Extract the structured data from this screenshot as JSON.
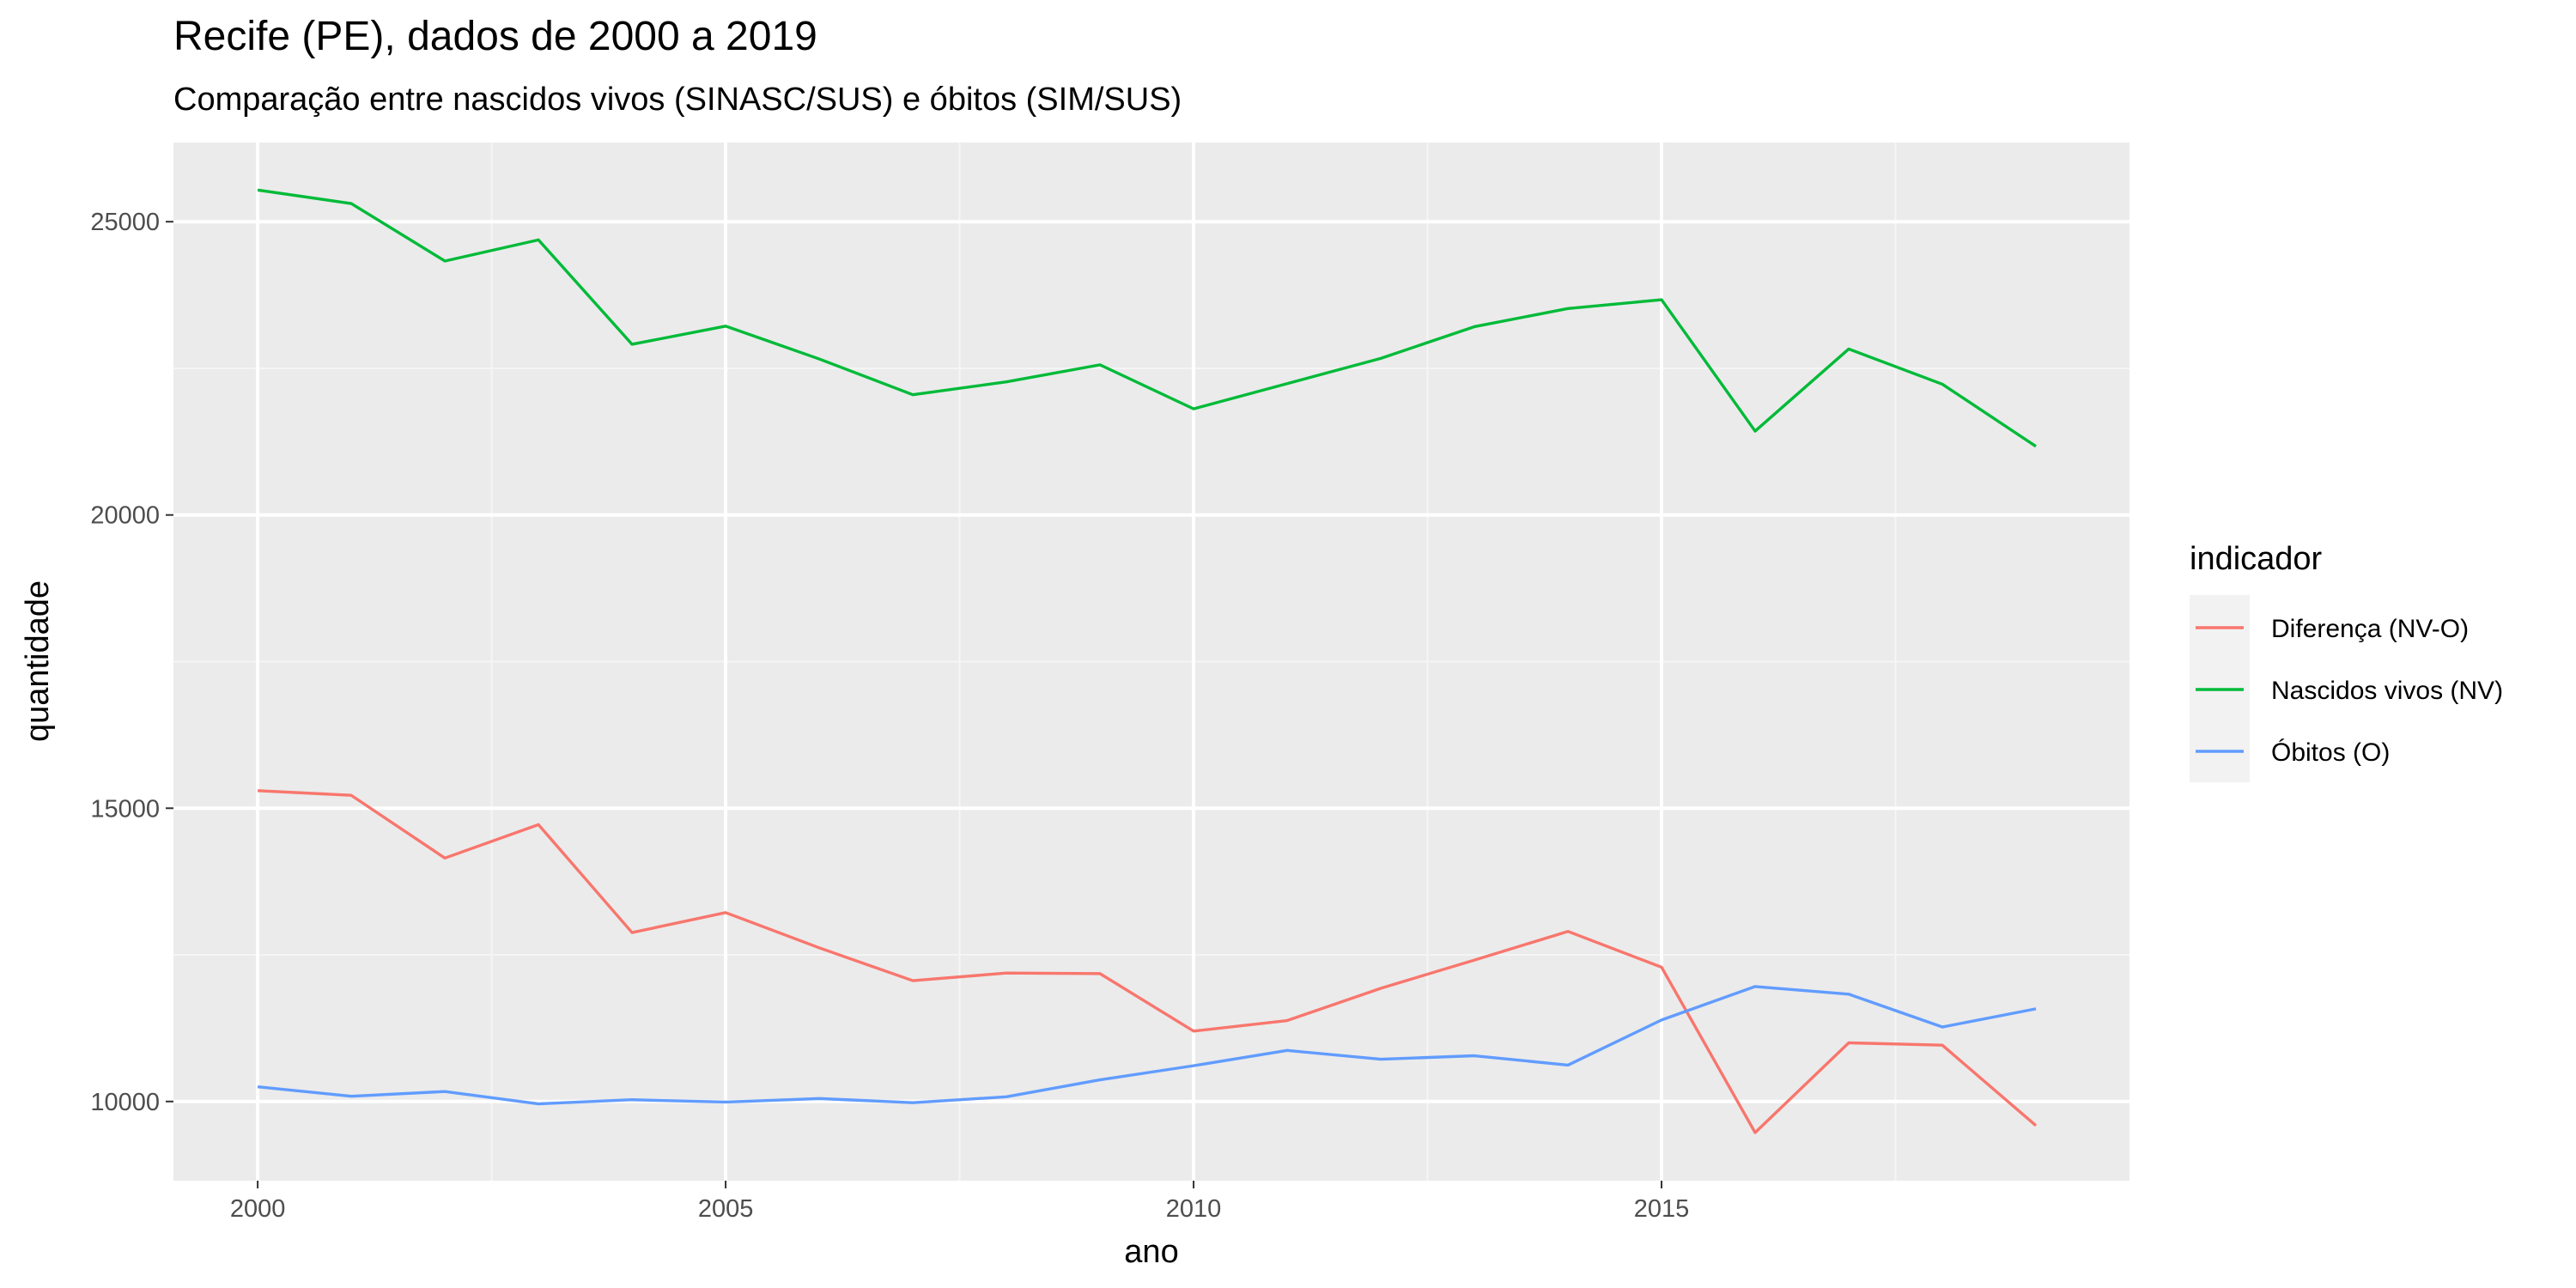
{
  "chart_data": {
    "type": "line",
    "title": "Recife (PE), dados de 2000 a 2019",
    "subtitle": "Comparação entre nascidos vivos (SINASC/SUS) e óbitos (SIM/SUS)",
    "xlabel": "ano",
    "ylabel": "quantidade",
    "xlim": [
      1999.1,
      2020.0
    ],
    "ylim": [
      8650,
      26350
    ],
    "x_ticks": [
      2000,
      2005,
      2010,
      2015
    ],
    "y_ticks": [
      10000,
      15000,
      20000,
      25000
    ],
    "grid": true,
    "legend": {
      "title": "indicador",
      "position": "right"
    },
    "x": [
      2000,
      2001,
      2002,
      2003,
      2004,
      2005,
      2006,
      2007,
      2008,
      2009,
      2010,
      2011,
      2012,
      2013,
      2014,
      2015,
      2016,
      2017,
      2018,
      2019
    ],
    "series": [
      {
        "name": "Diferença (NV-O)",
        "color": "#F8766D",
        "values": [
          15300,
          15220,
          14150,
          14720,
          12880,
          13220,
          12620,
          12060,
          12190,
          12180,
          11200,
          11380,
          11930,
          12410,
          12900,
          12290,
          9470,
          11000,
          10960,
          9590
        ]
      },
      {
        "name": "Nascidos vivos (NV)",
        "color": "#00BA38",
        "values": [
          25540,
          25310,
          24330,
          24690,
          22910,
          23220,
          22660,
          22050,
          22270,
          22560,
          21810,
          22240,
          22670,
          23210,
          23520,
          23670,
          21430,
          22830,
          22230,
          21170
        ]
      },
      {
        "name": "Óbitos (O)",
        "color": "#619CFF",
        "values": [
          10250,
          10090,
          10170,
          9960,
          10030,
          9990,
          10050,
          9980,
          10080,
          10370,
          10610,
          10870,
          10720,
          10780,
          10620,
          11390,
          11960,
          11830,
          11270,
          11580
        ]
      }
    ]
  }
}
